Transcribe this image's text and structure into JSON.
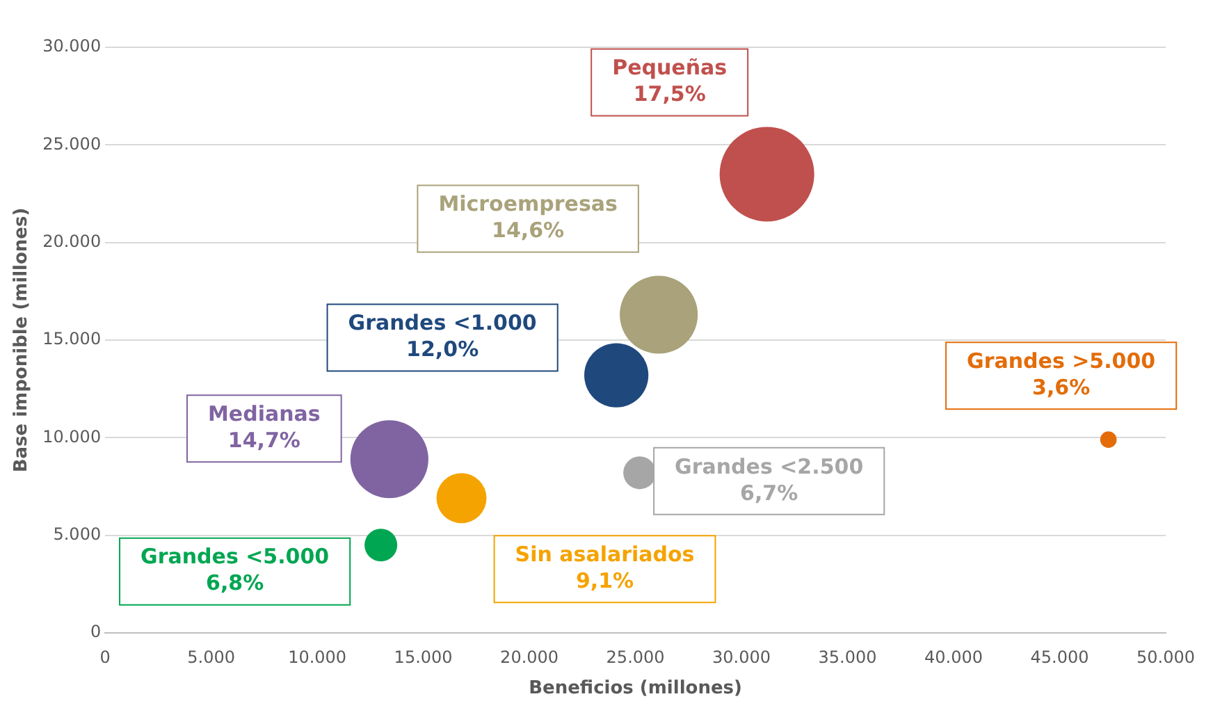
{
  "chart_data": {
    "type": "bubble",
    "xlabel": "Beneficios (millones)",
    "ylabel": "Base imponible (millones)",
    "xlim": [
      0,
      50000
    ],
    "ylim": [
      0,
      30000
    ],
    "xticks": [
      0,
      {
        "value": 5000,
        "label": "5.000"
      },
      {
        "value": 10000,
        "label": "10.000"
      },
      {
        "value": 15000,
        "label": "15.000"
      },
      {
        "value": 20000,
        "label": "20.000"
      },
      {
        "value": 25000,
        "label": "25.000"
      },
      {
        "value": 30000,
        "label": "30.000"
      },
      {
        "value": 35000,
        "label": "35.000"
      },
      {
        "value": 40000,
        "label": "40.000"
      },
      {
        "value": 45000,
        "label": "45.000"
      },
      {
        "value": 50000,
        "label": "50.000"
      }
    ],
    "yticks": [
      0,
      {
        "value": 5000,
        "label": "5.000"
      },
      {
        "value": 10000,
        "label": "10.000"
      },
      {
        "value": 15000,
        "label": "15.000"
      },
      {
        "value": 20000,
        "label": "20.000"
      },
      {
        "value": 25000,
        "label": "25.000"
      },
      {
        "value": 30000,
        "label": "30.000"
      }
    ],
    "grid": "y",
    "legend": false,
    "series": [
      {
        "name": "Pequeñas",
        "color": "#c0504d",
        "x": [
          31200
        ],
        "values": [
          23500
        ],
        "sizes": [
          1
        ]
      },
      {
        "name": "Microempresas",
        "color": "#a9a27a",
        "x": [
          26100
        ],
        "values": [
          16300
        ],
        "sizes": [
          0.68
        ]
      },
      {
        "name": "Grandes <1.000",
        "color": "#1f497d",
        "x": [
          24100
        ],
        "values": [
          13200
        ],
        "sizes": [
          0.46
        ]
      },
      {
        "name": "Medianas",
        "color": "#8064a2",
        "x": [
          13400
        ],
        "values": [
          8900
        ],
        "sizes": [
          0.68
        ]
      },
      {
        "name": "Sin asalariados",
        "color": "#f5a300",
        "x": [
          16800
        ],
        "values": [
          6900
        ],
        "sizes": [
          0.28
        ]
      },
      {
        "name": "Grandes <2.500",
        "color": "#a6a6a6",
        "x": [
          25200
        ],
        "values": [
          8200
        ],
        "sizes": [
          0.12
        ]
      },
      {
        "name": "Grandes <5.000",
        "color": "#00a651",
        "x": [
          13000
        ],
        "values": [
          4500
        ],
        "sizes": [
          0.12
        ]
      },
      {
        "name": "Grandes >5.000",
        "color": "#e36c09",
        "x": [
          47300
        ],
        "values": [
          9900
        ],
        "sizes": [
          0.03
        ]
      }
    ],
    "annotations": [
      "17,5%",
      "14,6%",
      "12,0%",
      "14,7%",
      "9,1%",
      "6,7%",
      "6,8%",
      "3,6%"
    ]
  }
}
